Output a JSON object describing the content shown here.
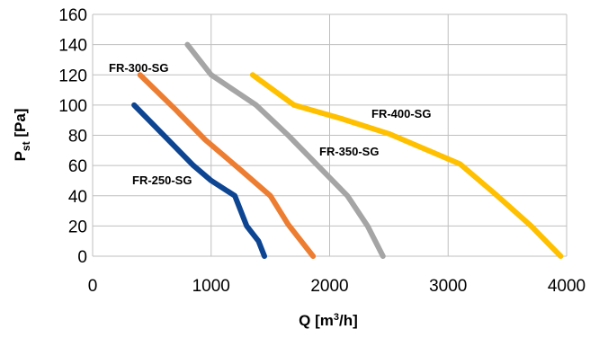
{
  "chart_data": {
    "type": "line",
    "xlabel": "Q [m³/h]",
    "ylabel": "Pst [Pa]",
    "xlim": [
      0,
      4000
    ],
    "ylim": [
      0,
      160
    ],
    "x_ticks": [
      0,
      1000,
      2000,
      3000,
      4000
    ],
    "y_ticks": [
      0,
      20,
      40,
      60,
      80,
      100,
      120,
      140,
      160
    ],
    "grid": true,
    "legend": "none",
    "series": [
      {
        "name": "FR-250-SG",
        "color": "#0d4592",
        "x": [
          350,
          600,
          850,
          1000,
          1200,
          1300,
          1400,
          1450
        ],
        "y": [
          100,
          80,
          60,
          50,
          40,
          20,
          10,
          0
        ]
      },
      {
        "name": "FR-300-SG",
        "color": "#ed7d31",
        "x": [
          400,
          700,
          950,
          1250,
          1500,
          1650,
          1860
        ],
        "y": [
          120,
          97,
          77,
          57,
          40,
          21,
          0
        ]
      },
      {
        "name": "FR-350-SG",
        "color": "#a5a5a5",
        "x": [
          800,
          1000,
          1380,
          1650,
          1900,
          2150,
          2320,
          2450
        ],
        "y": [
          140,
          120,
          100,
          80,
          60,
          40,
          20,
          0
        ]
      },
      {
        "name": "FR-400-SG",
        "color": "#ffc000",
        "x": [
          1350,
          1700,
          2100,
          2500,
          3100,
          3400,
          3700,
          3950
        ],
        "y": [
          120,
          100,
          91,
          81,
          61,
          41,
          20,
          0
        ]
      }
    ]
  }
}
